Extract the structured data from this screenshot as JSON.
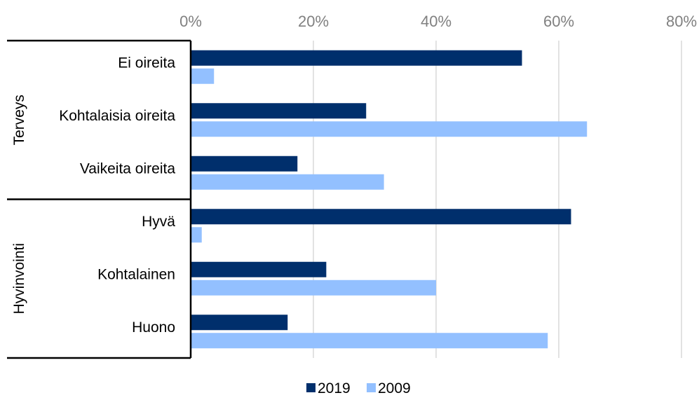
{
  "chart_data": {
    "type": "bar",
    "orientation": "horizontal",
    "title": "",
    "xlabel": "",
    "ylabel": "",
    "xlim": [
      0,
      80
    ],
    "x_ticks": [
      "0%",
      "20%",
      "40%",
      "60%",
      "80%"
    ],
    "x_tick_values": [
      0,
      20,
      40,
      60,
      80
    ],
    "grid": true,
    "legend_position": "bottom",
    "groups": [
      {
        "label": "Terveys",
        "categories": [
          "Ei oireita",
          "Kohtalaisia oireita",
          "Vaikeita oireita"
        ]
      },
      {
        "label": "Hyvinvointi",
        "categories": [
          "Hyvä",
          "Kohtalainen",
          "Huono"
        ]
      }
    ],
    "categories": [
      "Ei oireita",
      "Kohtalaisia oireita",
      "Vaikeita oireita",
      "Hyvä",
      "Kohtalainen",
      "Huono"
    ],
    "series": [
      {
        "name": "2019",
        "color": "#002f6c",
        "values": [
          54,
          28.6,
          17.4,
          62,
          22.1,
          15.8
        ]
      },
      {
        "name": "2009",
        "color": "#93c0ff",
        "values": [
          3.8,
          64.6,
          31.5,
          1.8,
          40,
          58.2
        ]
      }
    ]
  }
}
